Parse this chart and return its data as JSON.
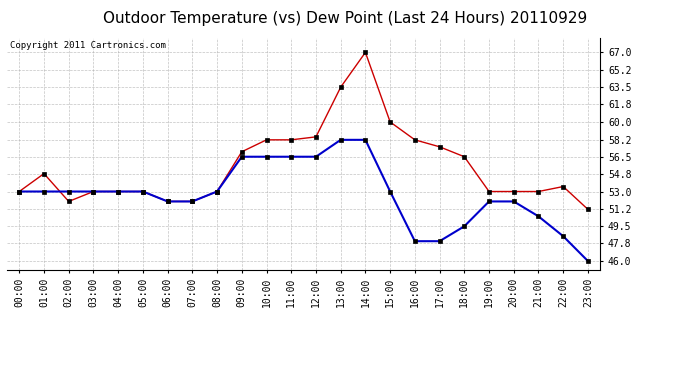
{
  "title": "Outdoor Temperature (vs) Dew Point (Last 24 Hours) 20110929",
  "copyright_text": "Copyright 2011 Cartronics.com",
  "hours": [
    0,
    1,
    2,
    3,
    4,
    5,
    6,
    7,
    8,
    9,
    10,
    11,
    12,
    13,
    14,
    15,
    16,
    17,
    18,
    19,
    20,
    21,
    22,
    23
  ],
  "temp": [
    53.0,
    54.8,
    52.0,
    53.0,
    53.0,
    53.0,
    52.0,
    52.0,
    53.0,
    57.0,
    58.2,
    58.2,
    58.5,
    63.5,
    67.0,
    60.0,
    58.2,
    57.5,
    56.5,
    53.0,
    53.0,
    53.0,
    53.5,
    51.2
  ],
  "dew": [
    53.0,
    53.0,
    53.0,
    53.0,
    53.0,
    53.0,
    52.0,
    52.0,
    53.0,
    56.5,
    56.5,
    56.5,
    56.5,
    58.2,
    58.2,
    53.0,
    48.0,
    48.0,
    49.5,
    52.0,
    52.0,
    50.5,
    48.5,
    46.0
  ],
  "temp_color": "#cc0000",
  "dew_color": "#0000cc",
  "bg_color": "#ffffff",
  "plot_bg_color": "#ffffff",
  "grid_color": "#aaaaaa",
  "ylim_min": 45.1,
  "ylim_max": 68.5,
  "yticks": [
    46.0,
    47.8,
    49.5,
    51.2,
    53.0,
    54.8,
    56.5,
    58.2,
    60.0,
    61.8,
    63.5,
    65.2,
    67.0
  ],
  "title_fontsize": 11,
  "copyright_fontsize": 6.5,
  "tick_label_fontsize": 7
}
